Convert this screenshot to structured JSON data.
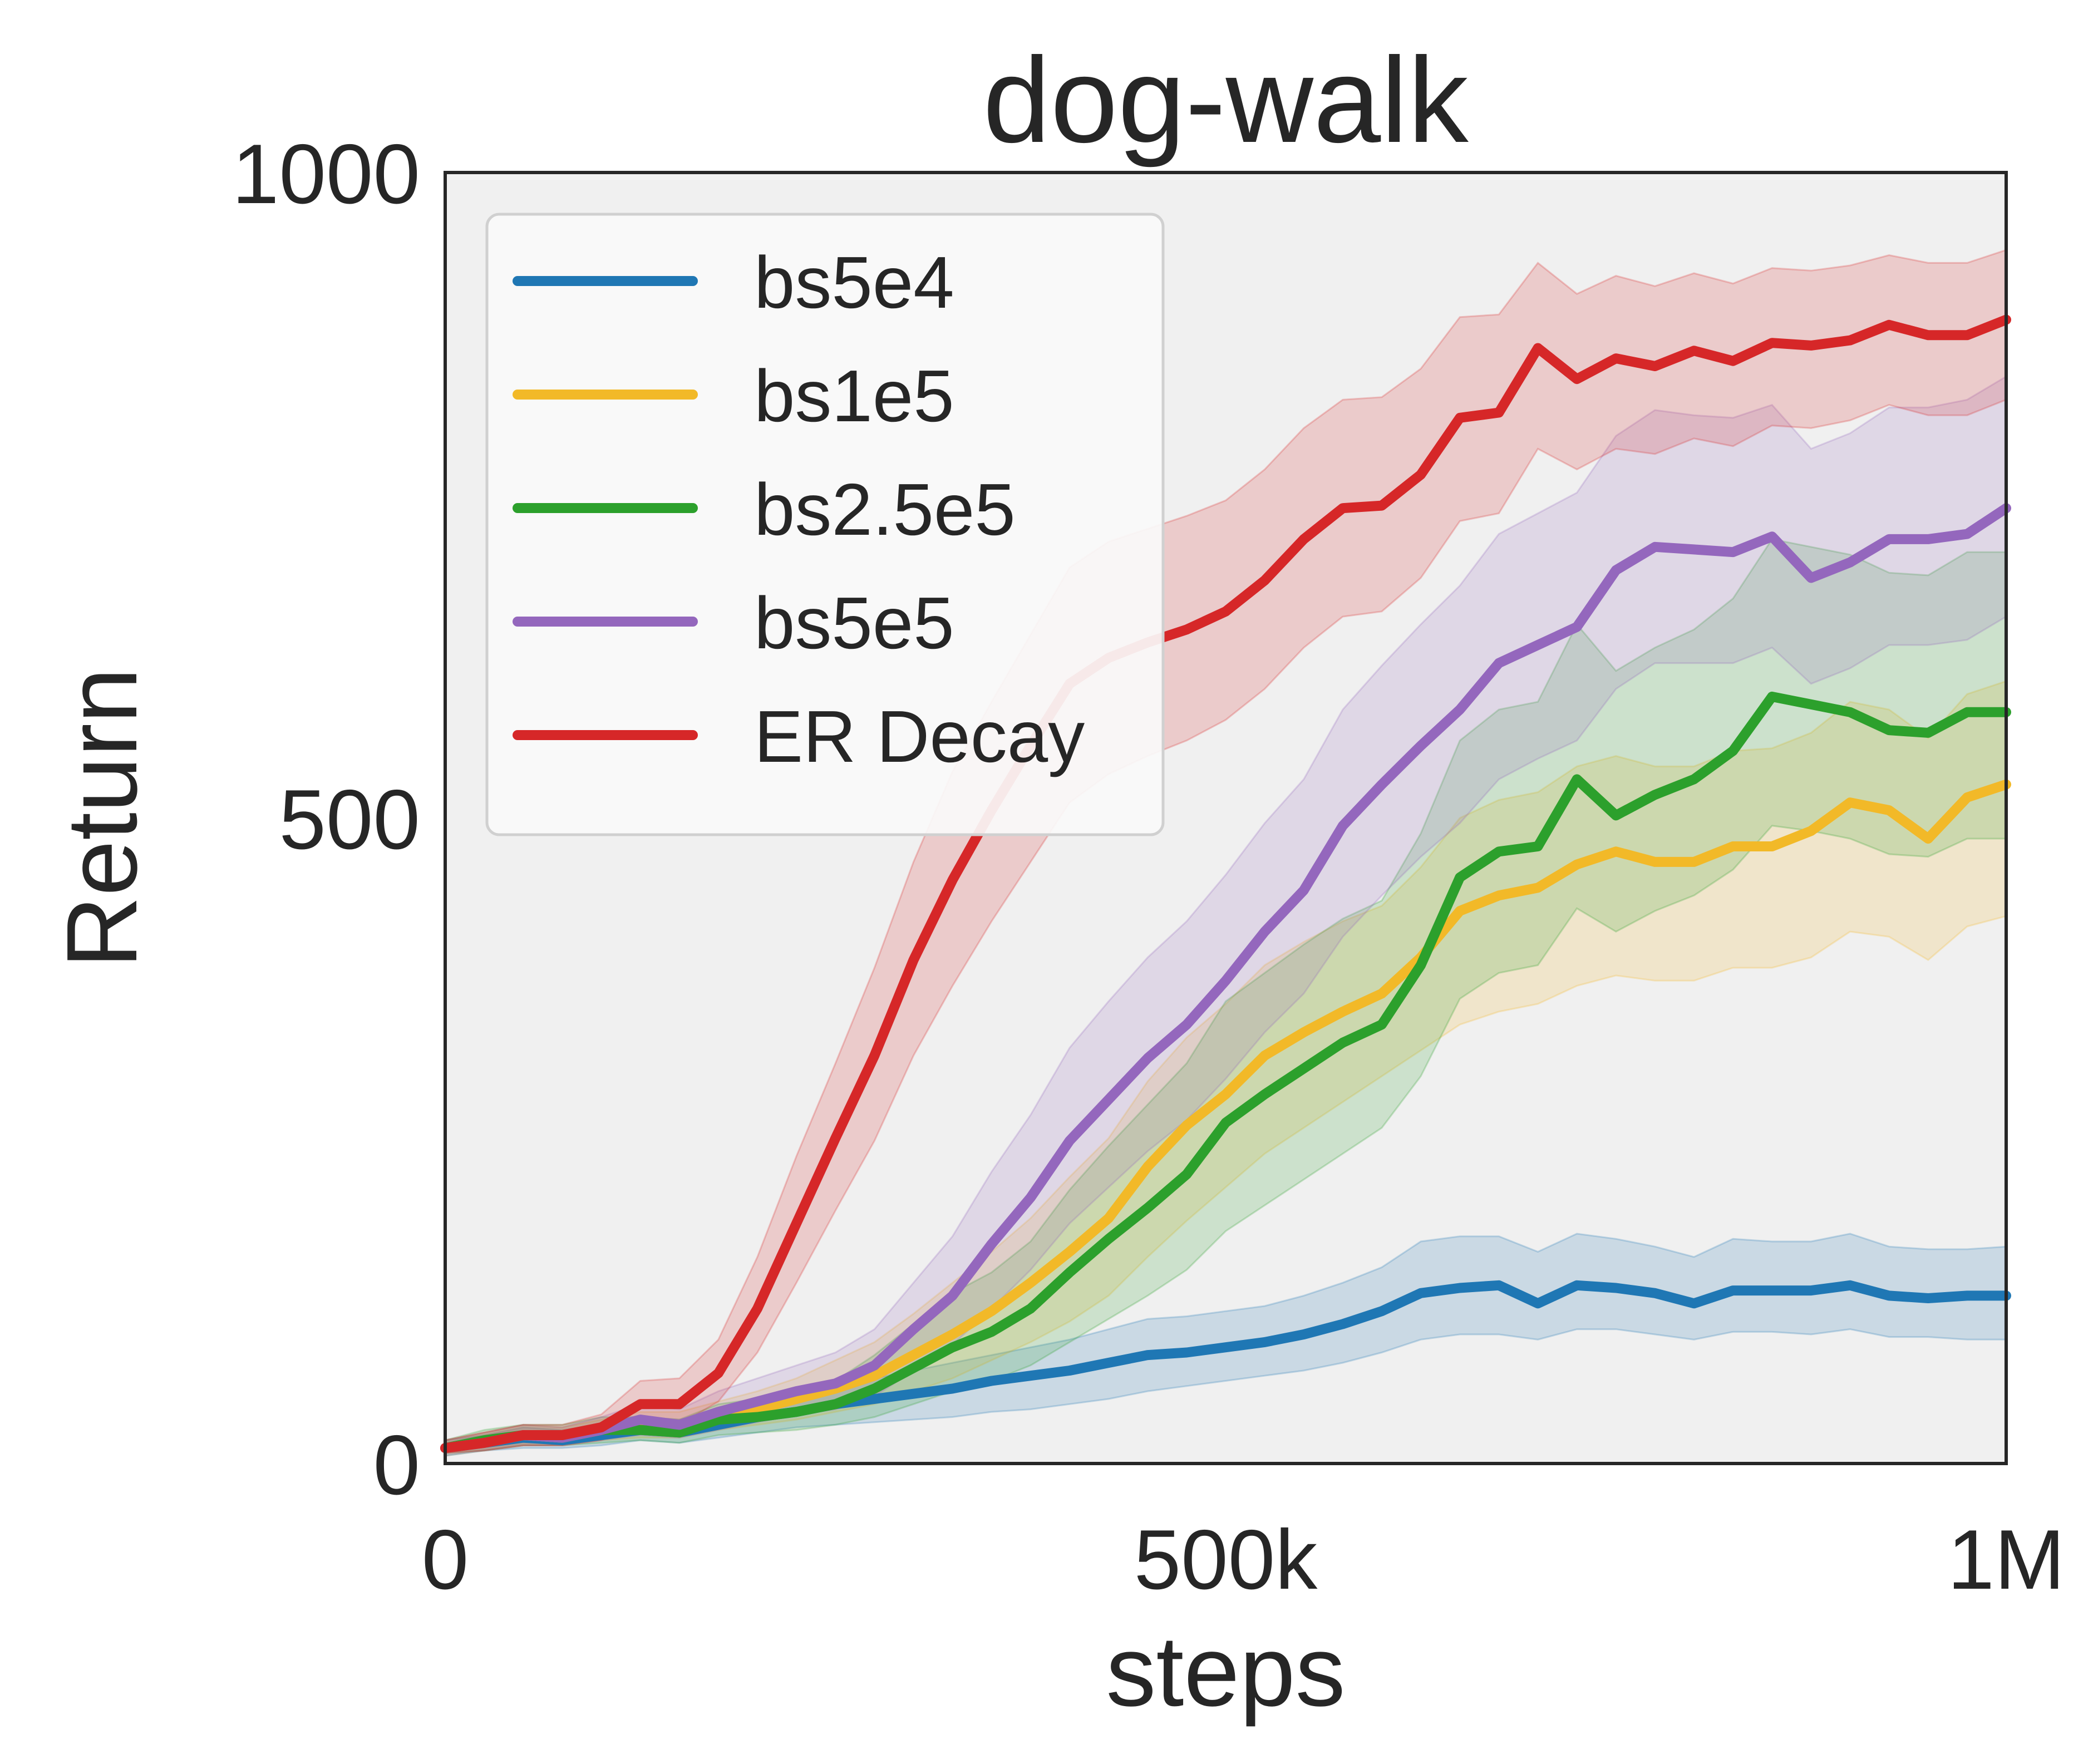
{
  "chart_data": {
    "type": "line",
    "title": "dog-walk",
    "xlabel": "steps",
    "ylabel": "Return",
    "xlim": [
      0,
      1000000
    ],
    "ylim": [
      0,
      1000
    ],
    "xticks": [
      {
        "value": 0,
        "label": "0"
      },
      {
        "value": 500000,
        "label": "500k"
      },
      {
        "value": 1000000,
        "label": "1M"
      }
    ],
    "yticks": [
      {
        "value": 0,
        "label": "0"
      },
      {
        "value": 500,
        "label": "500"
      },
      {
        "value": 1000,
        "label": "1000"
      }
    ],
    "grid": false,
    "legend_position": "top-left",
    "background_color": "#f0f0f0",
    "x": [
      0,
      25000,
      50000,
      75000,
      100000,
      125000,
      150000,
      175000,
      200000,
      225000,
      250000,
      275000,
      300000,
      325000,
      350000,
      375000,
      400000,
      425000,
      450000,
      475000,
      500000,
      525000,
      550000,
      575000,
      600000,
      625000,
      650000,
      675000,
      700000,
      725000,
      750000,
      775000,
      800000,
      825000,
      850000,
      875000,
      900000,
      925000,
      950000,
      975000,
      1000000
    ],
    "series": [
      {
        "name": "bs5e4",
        "color": "#1f77b4",
        "values": [
          12,
          16,
          20,
          18,
          22,
          26,
          24,
          30,
          36,
          40,
          46,
          50,
          54,
          58,
          64,
          68,
          72,
          78,
          84,
          86,
          90,
          94,
          100,
          108,
          118,
          132,
          136,
          138,
          124,
          138,
          136,
          132,
          124,
          134,
          134,
          134,
          138,
          130,
          128,
          130,
          130
        ],
        "lower": [
          8,
          10,
          12,
          12,
          14,
          18,
          16,
          20,
          24,
          28,
          30,
          32,
          34,
          36,
          40,
          42,
          46,
          50,
          56,
          60,
          64,
          68,
          72,
          78,
          86,
          96,
          100,
          100,
          96,
          104,
          104,
          100,
          96,
          102,
          102,
          100,
          104,
          98,
          98,
          96,
          96
        ],
        "upper": [
          18,
          22,
          28,
          26,
          30,
          36,
          34,
          40,
          48,
          54,
          60,
          66,
          72,
          78,
          84,
          90,
          96,
          104,
          112,
          114,
          118,
          122,
          130,
          140,
          152,
          172,
          176,
          176,
          164,
          178,
          174,
          168,
          160,
          174,
          172,
          172,
          178,
          168,
          166,
          166,
          168
        ]
      },
      {
        "name": "bs1e5",
        "color": "#f2b928",
        "values": [
          12,
          16,
          22,
          20,
          26,
          30,
          28,
          36,
          42,
          50,
          58,
          68,
          84,
          100,
          118,
          140,
          164,
          190,
          230,
          262,
          286,
          316,
          334,
          350,
          364,
          392,
          428,
          440,
          446,
          464,
          474,
          466,
          466,
          478,
          478,
          490,
          512,
          506,
          484,
          516,
          526
        ],
        "lower": [
          8,
          10,
          14,
          14,
          18,
          20,
          20,
          26,
          30,
          34,
          40,
          46,
          56,
          66,
          80,
          94,
          110,
          130,
          160,
          188,
          214,
          240,
          260,
          280,
          300,
          320,
          340,
          350,
          356,
          370,
          378,
          374,
          374,
          384,
          384,
          392,
          412,
          408,
          390,
          416,
          424
        ],
        "upper": [
          18,
          24,
          30,
          28,
          34,
          40,
          40,
          48,
          56,
          66,
          80,
          94,
          116,
          140,
          164,
          190,
          222,
          252,
          296,
          330,
          356,
          386,
          404,
          420,
          432,
          462,
          500,
          514,
          520,
          540,
          548,
          540,
          540,
          552,
          554,
          566,
          590,
          584,
          562,
          596,
          606
        ]
      },
      {
        "name": "bs2.5e5",
        "color": "#2ca02c",
        "values": [
          12,
          18,
          22,
          22,
          26,
          26,
          24,
          34,
          36,
          40,
          46,
          58,
          74,
          90,
          102,
          120,
          148,
          174,
          198,
          224,
          264,
          286,
          306,
          326,
          340,
          386,
          454,
          474,
          478,
          530,
          502,
          518,
          530,
          552,
          594,
          588,
          582,
          568,
          566,
          582,
          582
        ],
        "lower": [
          6,
          10,
          14,
          14,
          16,
          18,
          16,
          22,
          24,
          26,
          30,
          36,
          46,
          56,
          64,
          76,
          94,
          112,
          130,
          150,
          180,
          200,
          220,
          240,
          260,
          300,
          360,
          380,
          386,
          430,
          412,
          428,
          440,
          460,
          494,
          490,
          484,
          472,
          470,
          484,
          484
        ],
        "upper": [
          18,
          26,
          30,
          30,
          36,
          36,
          34,
          46,
          50,
          56,
          64,
          84,
          108,
          132,
          148,
          172,
          212,
          246,
          278,
          310,
          358,
          380,
          402,
          422,
          436,
          488,
          560,
          584,
          590,
          650,
          614,
          632,
          646,
          670,
          716,
          710,
          704,
          690,
          688,
          706,
          706
        ]
      },
      {
        "name": "bs5e5",
        "color": "#9467bd",
        "values": [
          12,
          16,
          22,
          20,
          26,
          34,
          30,
          40,
          48,
          56,
          62,
          76,
          104,
          130,
          170,
          206,
          250,
          282,
          314,
          340,
          374,
          412,
          444,
          494,
          526,
          556,
          584,
          620,
          634,
          648,
          692,
          710,
          708,
          706,
          718,
          686,
          698,
          716,
          716,
          720,
          740
        ],
        "lower": [
          6,
          10,
          14,
          14,
          18,
          22,
          20,
          26,
          32,
          38,
          42,
          52,
          72,
          92,
          120,
          150,
          186,
          214,
          242,
          266,
          298,
          334,
          364,
          408,
          440,
          470,
          496,
          530,
          546,
          560,
          600,
          620,
          620,
          620,
          632,
          604,
          616,
          634,
          634,
          638,
          656
        ],
        "upper": [
          18,
          24,
          30,
          28,
          36,
          46,
          42,
          56,
          66,
          76,
          86,
          104,
          140,
          176,
          226,
          270,
          322,
          358,
          392,
          420,
          456,
          496,
          530,
          584,
          618,
          650,
          680,
          720,
          736,
          752,
          796,
          816,
          812,
          810,
          820,
          786,
          798,
          818,
          818,
          824,
          842
        ]
      },
      {
        "name": "ER Decay",
        "color": "#d62728",
        "values": [
          12,
          16,
          22,
          22,
          28,
          46,
          46,
          70,
          120,
          186,
          252,
          316,
          390,
          452,
          506,
          556,
          604,
          624,
          636,
          646,
          660,
          684,
          716,
          740,
          742,
          766,
          810,
          814,
          864,
          840,
          856,
          850,
          862,
          854,
          868,
          866,
          870,
          882,
          874,
          874,
          886
        ],
        "lower": [
          8,
          10,
          14,
          14,
          18,
          30,
          30,
          48,
          86,
          140,
          196,
          250,
          316,
          370,
          420,
          466,
          512,
          534,
          548,
          560,
          576,
          600,
          632,
          656,
          660,
          686,
          730,
          736,
          786,
          770,
          786,
          782,
          794,
          788,
          804,
          802,
          808,
          820,
          812,
          812,
          824
        ],
        "upper": [
          18,
          24,
          30,
          30,
          38,
          64,
          66,
          96,
          160,
          238,
          310,
          384,
          466,
          536,
          590,
          642,
          694,
          714,
          724,
          734,
          746,
          770,
          802,
          824,
          826,
          848,
          888,
          890,
          930,
          906,
          920,
          912,
          922,
          914,
          926,
          924,
          928,
          936,
          930,
          930,
          940
        ]
      }
    ]
  }
}
